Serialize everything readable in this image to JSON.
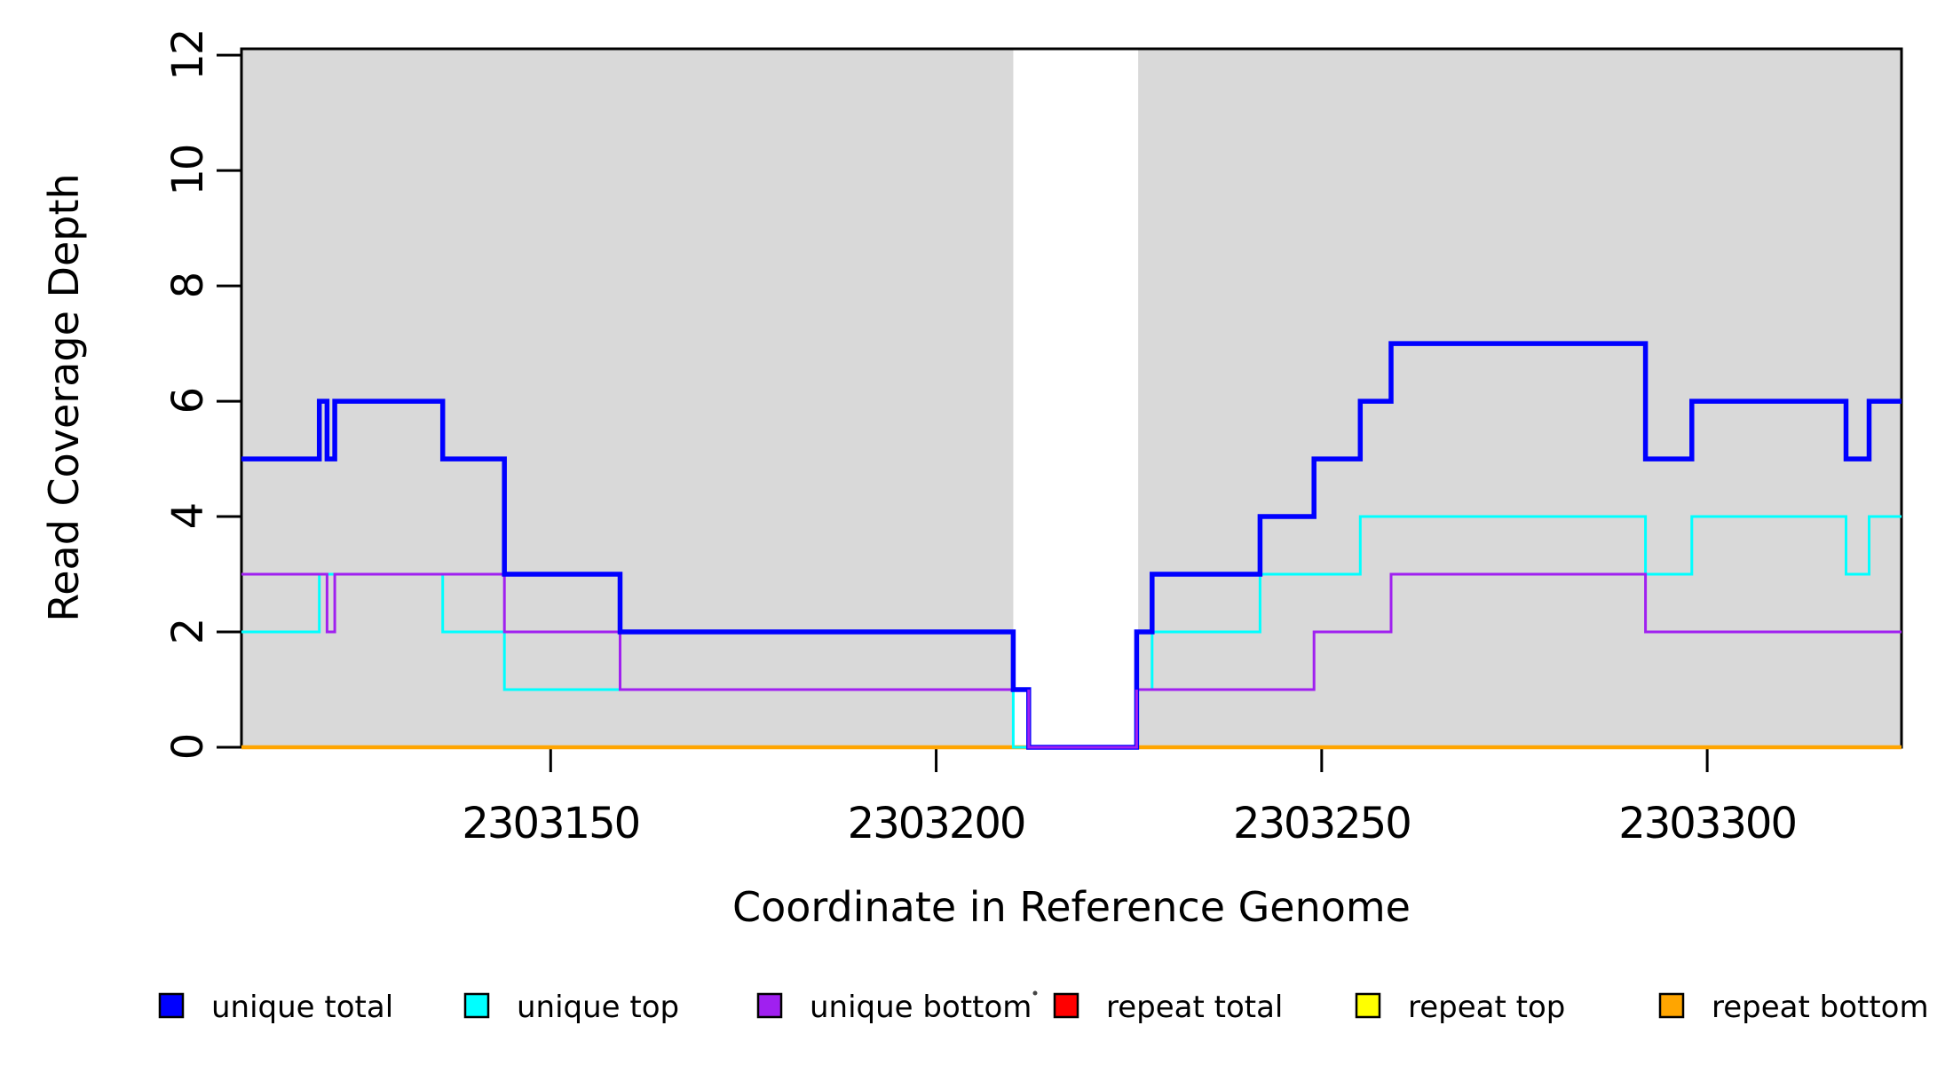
{
  "chart_data": {
    "type": "step",
    "title": "",
    "xlabel": "Coordinate in Reference Genome",
    "ylabel": "Read Coverage Depth",
    "legend_position": "bottom",
    "grid": false,
    "x_axis": {
      "lim": [
        2303109.9,
        2303325.2
      ],
      "ticks": [
        2303150,
        2303200,
        2303250,
        2303300
      ],
      "tick_labels": [
        "2303150",
        "2303200",
        "2303250",
        "2303300"
      ]
    },
    "y_axis": {
      "lim": [
        0,
        12.11
      ],
      "ticks": [
        0,
        2,
        4,
        6,
        8,
        10,
        12
      ],
      "tick_labels": [
        "0",
        "2",
        "4",
        "6",
        "8",
        "10",
        "12"
      ]
    },
    "background": {
      "band_color": "#D9D9D9",
      "bands": [
        {
          "x0": 2303109.9,
          "x1": 2303210.0
        },
        {
          "x0": 2303226.2,
          "x1": 2303325.2
        }
      ],
      "gap_note": "white vertical band (no shaded region) between x=2303210 and x=2303226"
    },
    "series": [
      {
        "name": "unique total",
        "color": "#0000FF",
        "line_width": 5.5,
        "steps": [
          [
            2303109.9,
            5
          ],
          [
            2303120,
            6
          ],
          [
            2303121,
            5
          ],
          [
            2303122,
            6
          ],
          [
            2303136,
            5
          ],
          [
            2303144,
            3
          ],
          [
            2303159,
            2
          ],
          [
            2303210,
            1
          ],
          [
            2303212,
            0
          ],
          [
            2303226,
            2
          ],
          [
            2303228,
            3
          ],
          [
            2303242,
            4
          ],
          [
            2303249,
            5
          ],
          [
            2303255,
            6
          ],
          [
            2303259,
            7
          ],
          [
            2303292,
            5
          ],
          [
            2303298,
            6
          ],
          [
            2303318,
            5
          ],
          [
            2303321,
            6
          ]
        ]
      },
      {
        "name": "unique top",
        "color": "#00FFFF",
        "line_width": 3,
        "steps": [
          [
            2303109.9,
            2
          ],
          [
            2303120,
            3
          ],
          [
            2303136,
            2
          ],
          [
            2303144,
            1
          ],
          [
            2303210,
            0
          ],
          [
            2303226,
            1
          ],
          [
            2303228,
            2
          ],
          [
            2303242,
            3
          ],
          [
            2303255,
            4
          ],
          [
            2303292,
            3
          ],
          [
            2303298,
            4
          ],
          [
            2303318,
            3
          ],
          [
            2303321,
            4
          ]
        ]
      },
      {
        "name": "unique bottom",
        "color": "#A020F0",
        "line_width": 3,
        "steps": [
          [
            2303109.9,
            3
          ],
          [
            2303121,
            2
          ],
          [
            2303122,
            3
          ],
          [
            2303144,
            2
          ],
          [
            2303159,
            1
          ],
          [
            2303212,
            0
          ],
          [
            2303226,
            1
          ],
          [
            2303249,
            2
          ],
          [
            2303259,
            3
          ],
          [
            2303292,
            2
          ]
        ]
      },
      {
        "name": "repeat total",
        "color": "#FF0000",
        "line_width": 3,
        "steps": [
          [
            2303109.9,
            0
          ]
        ]
      },
      {
        "name": "repeat top",
        "color": "#FFFF00",
        "line_width": 3,
        "steps": [
          [
            2303109.9,
            0
          ]
        ]
      },
      {
        "name": "repeat bottom",
        "color": "#FFA500",
        "line_width": 4.5,
        "steps": [
          [
            2303109.9,
            0
          ]
        ]
      }
    ],
    "gap_overlay": {
      "color": "#A020F0",
      "line_width": 3,
      "path": [
        [
          2303212,
          1
        ],
        [
          2303212,
          0
        ],
        [
          2303226,
          0
        ],
        [
          2303226,
          1
        ]
      ],
      "note": "purple redrawn over blue along the zero segment inside the white gap"
    },
    "legend": {
      "swatch_border_color": "#000000",
      "separator_dot_color": "#444444"
    }
  }
}
